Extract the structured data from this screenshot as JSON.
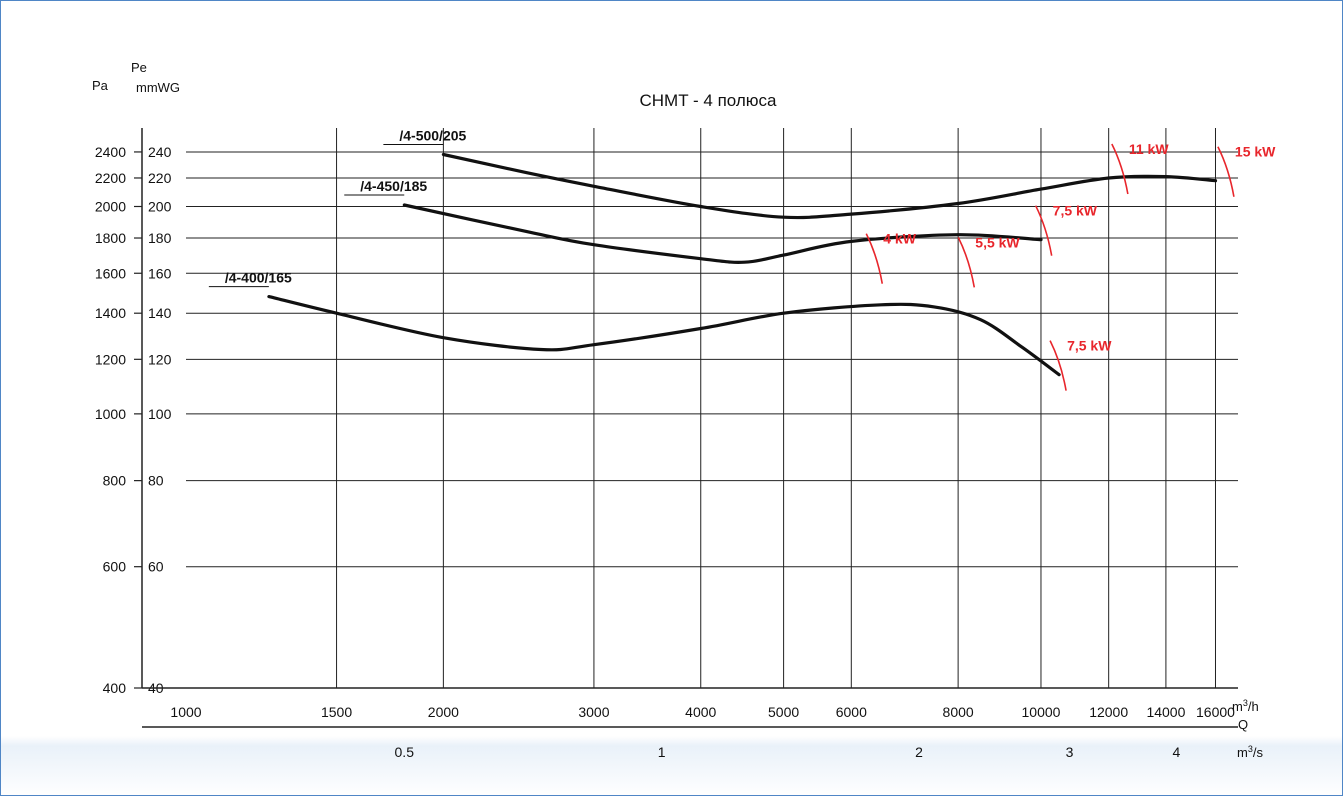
{
  "chart_data": {
    "type": "line",
    "title": "CHMT  -  4 полюса",
    "x_axis": {
      "scale": "log",
      "range": [
        1000,
        17000
      ],
      "unit": "m³/h",
      "unit_main": "m",
      "unit_sup": "3",
      "unit_tail": "/h",
      "label": "Q",
      "ticks": [
        1000,
        1500,
        2000,
        3000,
        4000,
        5000,
        6000,
        8000,
        10000,
        12000,
        14000,
        16000
      ]
    },
    "x_axis_secondary": {
      "unit": "m³/s",
      "unit_main": "m",
      "unit_sup": "3",
      "unit_tail": "/s",
      "ticks": [
        {
          "value": 0.5,
          "label": "0.5"
        },
        {
          "value": 1,
          "label": "1"
        },
        {
          "value": 2,
          "label": "2"
        },
        {
          "value": 3,
          "label": "3"
        },
        {
          "value": 4,
          "label": "4"
        }
      ]
    },
    "y_axis_mm": {
      "scale": "log",
      "range": [
        40,
        260
      ],
      "label": "Pe",
      "unit": "mmWG",
      "ticks": [
        40,
        60,
        80,
        100,
        120,
        140,
        160,
        180,
        200,
        220,
        240
      ]
    },
    "y_axis_pa": {
      "label": "Pa",
      "ticks": [
        400,
        600,
        800,
        1000,
        1200,
        1400,
        1600,
        1800,
        2000,
        2200,
        2400
      ]
    },
    "grid": true,
    "series": [
      {
        "name": "/4-500/205",
        "x": [
          2000,
          2500,
          3000,
          4000,
          5000,
          6000,
          8000,
          10000,
          12000,
          14000,
          16000
        ],
        "y": [
          238,
          224,
          214,
          200,
          193,
          195,
          202,
          212,
          220,
          221,
          218
        ]
      },
      {
        "name": "/4-450/185",
        "x": [
          1800,
          2500,
          3000,
          4000,
          4500,
          5000,
          6000,
          8000,
          10000
        ],
        "y": [
          201,
          184,
          176,
          168,
          166,
          170,
          178,
          182,
          179
        ]
      },
      {
        "name": "/4-400/165",
        "x": [
          1250,
          1500,
          2000,
          2600,
          3000,
          4000,
          5000,
          6500,
          7500,
          8500,
          9500,
          10500
        ],
        "y": [
          148,
          140,
          129,
          124,
          126,
          133,
          140,
          144,
          143,
          137,
          125,
          114
        ]
      }
    ],
    "power_markers": [
      {
        "label": "11 kW",
        "x": 12400,
        "y": 220
      },
      {
        "label": "15 kW",
        "x": 16500,
        "y": 218
      },
      {
        "label": "7,5 kW",
        "x": 10100,
        "y": 179
      },
      {
        "label": "4 kW",
        "x": 6400,
        "y": 163
      },
      {
        "label": "5,5 kW",
        "x": 8200,
        "y": 161
      },
      {
        "label": "7,5 kW",
        "x": 10500,
        "y": 114
      }
    ],
    "colors": {
      "curve": "#111111",
      "power": "#e8262c",
      "frame": "#4f86c6"
    }
  }
}
